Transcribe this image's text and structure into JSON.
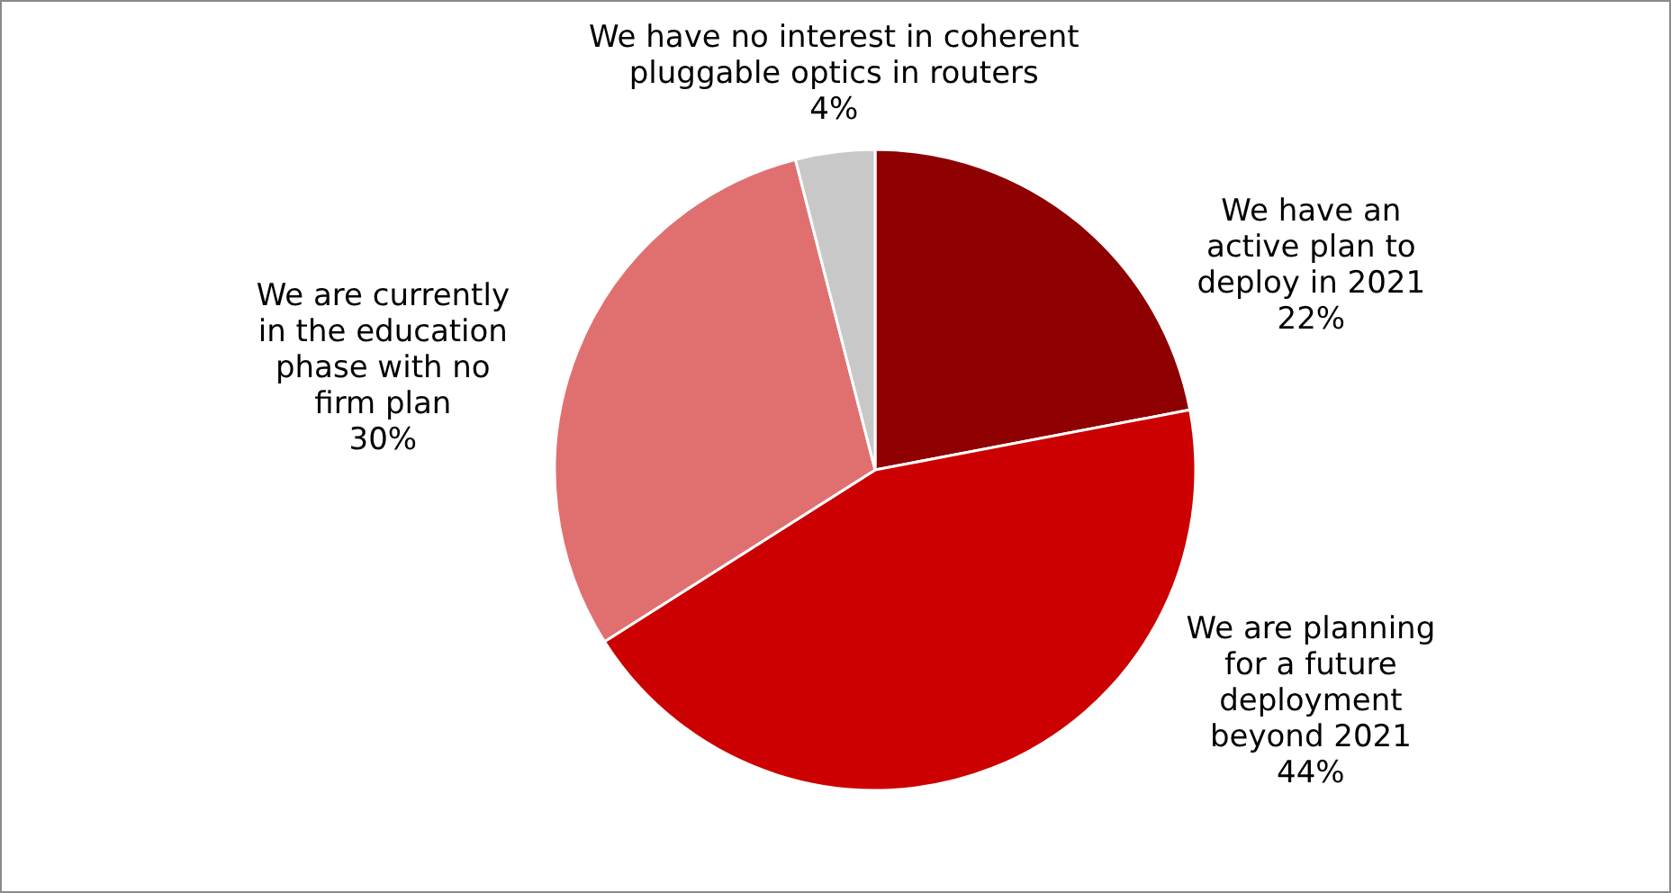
{
  "chart_data": {
    "type": "pie",
    "categories": [
      "We have an active plan to deploy in 2021",
      "We are planning for a future deployment beyond 2021",
      "We are currently in the education phase with no firm plan",
      "We have no interest in coherent pluggable optics in routers"
    ],
    "values": [
      22,
      44,
      30,
      4
    ],
    "colors": [
      "#8f0000",
      "#cc0000",
      "#e07070",
      "#c8c8c8"
    ],
    "value_labels": [
      "22%",
      "44%",
      "30%",
      "4%"
    ],
    "legend": false
  }
}
